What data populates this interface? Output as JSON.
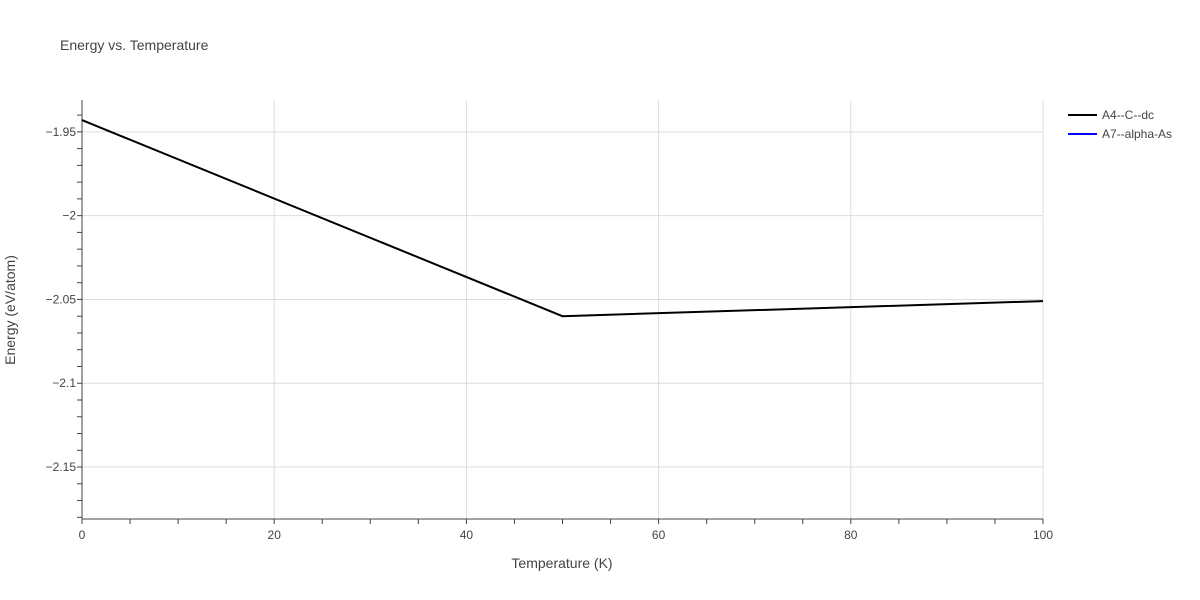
{
  "chart_data": {
    "type": "line",
    "title": "Energy vs. Temperature",
    "xlabel": "Temperature (K)",
    "ylabel": "Energy (eV/atom)",
    "xlim": [
      0,
      100
    ],
    "ylim": [
      -2.181,
      -1.931
    ],
    "x_ticks": [
      0,
      20,
      40,
      60,
      80,
      100
    ],
    "x_tick_labels": [
      "0",
      "20",
      "40",
      "60",
      "80",
      "100"
    ],
    "y_ticks": [
      -1.95,
      -2.0,
      -2.05,
      -2.1,
      -2.15
    ],
    "y_tick_labels": [
      "−1.95",
      "−2",
      "−2.05",
      "−2.1",
      "−2.15"
    ],
    "grid": true,
    "legend_position": "top-right",
    "series": [
      {
        "name": "A4--C--dc",
        "color": "#000000",
        "x": [
          0,
          50,
          100
        ],
        "y": [
          -1.943,
          -2.06,
          -2.051
        ]
      },
      {
        "name": "A7--alpha-As",
        "color": "#0000ff",
        "x": [],
        "y": []
      }
    ]
  }
}
